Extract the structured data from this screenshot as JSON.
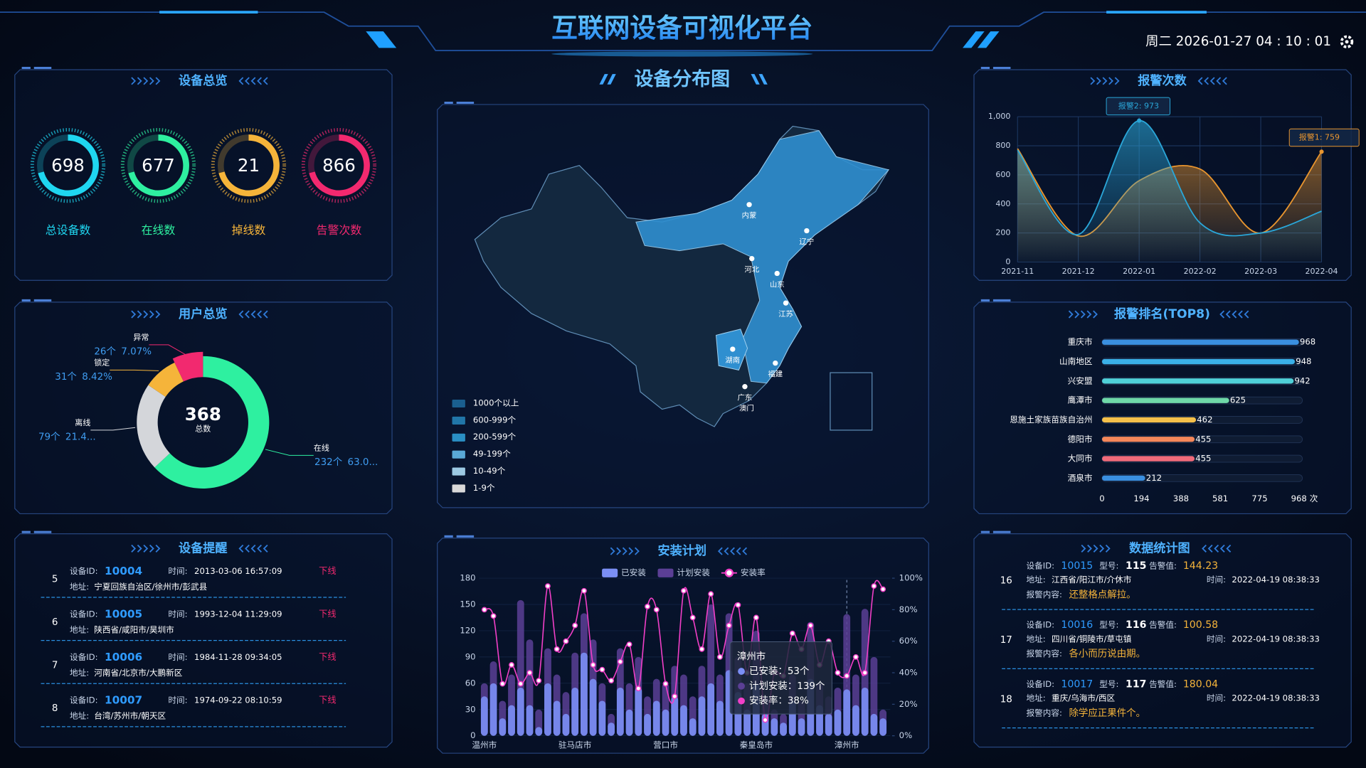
{
  "header": {
    "title": "互联网设备可视化平台",
    "datetime": "周二 2026-01-27 04 : 10 : 01"
  },
  "field_labels": {
    "id": "设备ID:",
    "time": "时间:",
    "address": "地址:",
    "model": "型号:",
    "alarm_value": "告警值:",
    "content": "报警内容:"
  },
  "overview": {
    "title": "设备总览",
    "items": [
      {
        "value": 698,
        "label": "总设备数",
        "color": "#1fd6f0"
      },
      {
        "value": 677,
        "label": "在线数",
        "color": "#2ef0a0"
      },
      {
        "value": 21,
        "label": "掉线数",
        "color": "#f5b43a"
      },
      {
        "value": 866,
        "label": "告警次数",
        "color": "#f2296f"
      }
    ]
  },
  "users": {
    "title": "用户总览",
    "chart_data": {
      "type": "pie",
      "donut": true,
      "center_value": 368,
      "center_label": "总数",
      "categories": [
        "在线",
        "离线",
        "锁定",
        "异常"
      ],
      "values": [
        232,
        79,
        31,
        26
      ],
      "value_labels": [
        "232个",
        "79个",
        "31个",
        "26个"
      ],
      "percent_labels": [
        "63.0...",
        "21.4...",
        "8.42%",
        "7.07%"
      ],
      "colors": [
        "#2ef0a0",
        "#d4d6da",
        "#f5b43a",
        "#f2296f"
      ]
    }
  },
  "reminders": {
    "title": "设备提醒",
    "items": [
      {
        "index": 5,
        "id": 10004,
        "time": "2013-03-06 16:57:09",
        "status": "下线",
        "address": "宁夏回族自治区/徐州市/彭武县"
      },
      {
        "index": 6,
        "id": 10005,
        "time": "1993-12-04 11:29:09",
        "status": "下线",
        "address": "陕西省/咸阳市/昊圳市"
      },
      {
        "index": 7,
        "id": 10006,
        "time": "1984-11-28 09:34:05",
        "status": "下线",
        "address": "河南省/北京市/大鹏新区"
      },
      {
        "index": 8,
        "id": 10007,
        "time": "1974-09-22 08:10:59",
        "status": "下线",
        "address": "台湾/苏州市/朝天区"
      }
    ]
  },
  "map": {
    "title": "设备分布图",
    "legend": [
      "1000个以上",
      "600-999个",
      "200-599个",
      "49-199个",
      "10-49个",
      "1-9个"
    ],
    "legend_colors": [
      "#1a5f8f",
      "#2176a8",
      "#2a8fc4",
      "#5aa9d6",
      "#9cc9e3",
      "#d9d9d9"
    ],
    "labels": [
      "内蒙",
      "辽宁",
      "河北",
      "山东",
      "江苏",
      "湖南",
      "福建",
      "广东",
      "澳门"
    ]
  },
  "install": {
    "title": "安装计划",
    "chart_data": {
      "type": "bar",
      "categories": [
        "温州市",
        null,
        null,
        null,
        null,
        null,
        null,
        null,
        null,
        null,
        "驻马店市",
        null,
        null,
        null,
        null,
        null,
        null,
        null,
        null,
        null,
        "营口市",
        null,
        null,
        null,
        null,
        null,
        null,
        null,
        null,
        null,
        "秦皇岛市",
        null,
        null,
        null,
        null,
        null,
        null,
        null,
        null,
        null,
        "漳州市",
        null,
        null,
        null,
        null
      ],
      "series": [
        {
          "name": "已安装",
          "color": "#7b8ff5",
          "values": [
            45,
            60,
            20,
            35,
            55,
            35,
            10,
            60,
            40,
            25,
            55,
            95,
            65,
            40,
            15,
            55,
            30,
            55,
            25,
            40,
            30,
            45,
            35,
            20,
            45,
            60,
            40,
            75,
            50,
            30,
            60,
            25,
            20,
            15,
            40,
            20,
            65,
            35,
            25,
            30,
            53,
            35,
            55,
            25,
            20
          ]
        },
        {
          "name": "计划安装",
          "color": "#5b3f95",
          "values": [
            60,
            85,
            40,
            70,
            155,
            110,
            30,
            100,
            70,
            50,
            95,
            140,
            110,
            60,
            25,
            100,
            60,
            90,
            45,
            65,
            60,
            80,
            70,
            45,
            80,
            150,
            70,
            140,
            90,
            60,
            120,
            45,
            30,
            25,
            70,
            40,
            130,
            60,
            45,
            55,
            139,
            70,
            145,
            90,
            30
          ]
        },
        {
          "name": "安装率",
          "color": "#f23fc8",
          "type": "line",
          "axis": "y2",
          "values": [
            80,
            76,
            33,
            45,
            33,
            40,
            35,
            95,
            55,
            60,
            70,
            92,
            45,
            42,
            35,
            47,
            58,
            30,
            82,
            80,
            33,
            25,
            92,
            75,
            55,
            90,
            50,
            70,
            83,
            40,
            75,
            10,
            40,
            38,
            65,
            55,
            70,
            45,
            60,
            40,
            38,
            50,
            40,
            95,
            93
          ]
        }
      ],
      "ylim": [
        0,
        180
      ],
      "yticks": [
        0,
        30,
        60,
        90,
        120,
        150,
        180
      ],
      "y2lim": [
        0,
        100
      ],
      "y2ticks": [
        {
          "value": 0,
          "label": "0%"
        },
        {
          "value": 20,
          "label": "20%"
        },
        {
          "value": 40,
          "label": "40%"
        },
        {
          "value": 60,
          "label": "60%"
        },
        {
          "value": 80,
          "label": "80%"
        },
        {
          "value": 100,
          "label": "100%"
        }
      ],
      "tooltip": {
        "title": "漳州市",
        "lines": [
          "已安装：53个",
          "计划安装：139个",
          "安装率：38%"
        ]
      }
    }
  },
  "alarms": {
    "title": "报警次数",
    "chart_data": {
      "type": "line",
      "x": [
        "2021-11",
        "2021-12",
        "2022-01",
        "2022-02",
        "2022-03",
        "2022-04"
      ],
      "series": [
        {
          "color": "#e8952f",
          "values": [
            780,
            180,
            560,
            640,
            200,
            759
          ]
        },
        {
          "color": "#2aa6d8",
          "values": [
            770,
            190,
            973,
            270,
            200,
            350
          ]
        }
      ],
      "ylim": [
        0,
        1000
      ],
      "yticks": [
        0,
        200,
        400,
        600,
        800,
        {
          "value": 1000,
          "label": "1,000"
        }
      ],
      "grid": true,
      "annotations": [
        "报警2: 973",
        "报警1: 759"
      ]
    }
  },
  "ranking": {
    "title": "报警排名(TOP8)",
    "chart_data": {
      "type": "bar",
      "horizontal": true,
      "categories": [
        "重庆市",
        "山南地区",
        "兴安盟",
        "鹰潭市",
        "恩施土家族苗族自治州",
        "德阳市",
        "大同市",
        "酒泉市"
      ],
      "values": [
        968,
        948,
        942,
        625,
        462,
        455,
        455,
        212
      ],
      "colors": [
        "#3a8fe0",
        "#3ab0e8",
        "#4fd0d8",
        "#6fd8a8",
        "#f5c04a",
        "#f5875a",
        "#f06a7a",
        "#3a8fe0"
      ],
      "xlim": [
        0,
        968
      ],
      "xticks": [
        0,
        194,
        388,
        581,
        775,
        968
      ],
      "unit": "次"
    }
  },
  "stats": {
    "title": "数据统计图",
    "items": [
      {
        "index": 16,
        "id": 10015,
        "model": 115,
        "alarm_value": 144.23,
        "address": "江西省/阳江市/介休市",
        "time": "2022-04-19 08:38:33",
        "content": "还整格点解拉。"
      },
      {
        "index": 17,
        "id": 10016,
        "model": 116,
        "alarm_value": 100.58,
        "address": "四川省/铜陵市/草屯镇",
        "time": "2022-04-19 08:38:33",
        "content": "各小而历说由期。"
      },
      {
        "index": 18,
        "id": 10017,
        "model": 117,
        "alarm_value": 180.04,
        "address": "重庆/乌海市/西区",
        "time": "2022-04-19 08:38:33",
        "content": "除学应正果件个。"
      }
    ]
  }
}
